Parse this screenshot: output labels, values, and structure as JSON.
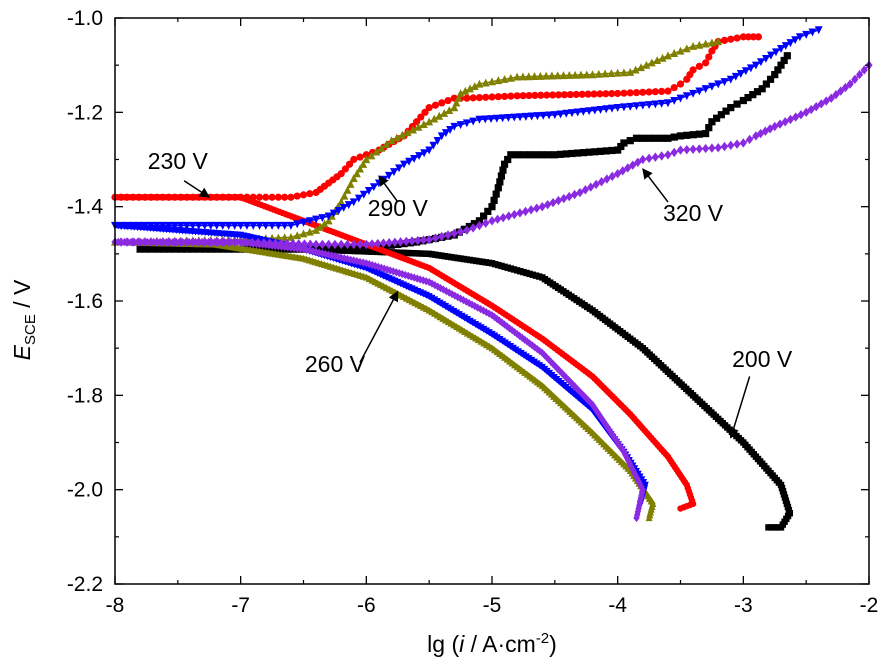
{
  "chart_data": {
    "type": "line",
    "xlabel_text": "lg (",
    "xlabel_italic": "i",
    "xlabel_unit": " / A·cm",
    "xlabel_sup": "-2",
    "xlabel_close": ")",
    "ylabel_italic": "E",
    "ylabel_sub": "SCE",
    "ylabel_unit": " / V",
    "xlim": [
      -8,
      -2
    ],
    "ylim": [
      -2.2,
      -1.0
    ],
    "xticks": [
      -8,
      -7,
      -6,
      -5,
      -4,
      -3,
      -2
    ],
    "yticks": [
      -2.2,
      -2.0,
      -1.8,
      -1.6,
      -1.4,
      -1.2,
      -1.0
    ],
    "legend": "none",
    "grid": false,
    "series": [
      {
        "name": "200 V",
        "color": "#000000",
        "marker": "square",
        "anodic": [
          [
            -7.8,
            -1.49
          ],
          [
            -7.0,
            -1.49
          ],
          [
            -6.3,
            -1.49
          ],
          [
            -5.9,
            -1.485
          ],
          [
            -5.6,
            -1.475
          ],
          [
            -5.3,
            -1.46
          ],
          [
            -5.1,
            -1.43
          ],
          [
            -5.0,
            -1.4
          ],
          [
            -4.95,
            -1.36
          ],
          [
            -4.9,
            -1.31
          ],
          [
            -4.85,
            -1.29
          ],
          [
            -4.5,
            -1.29
          ],
          [
            -4.0,
            -1.28
          ],
          [
            -3.95,
            -1.265
          ],
          [
            -3.85,
            -1.255
          ],
          [
            -3.6,
            -1.255
          ],
          [
            -3.5,
            -1.25
          ],
          [
            -3.3,
            -1.245
          ],
          [
            -3.25,
            -1.22
          ],
          [
            -3.1,
            -1.19
          ],
          [
            -3.0,
            -1.175
          ],
          [
            -2.85,
            -1.15
          ],
          [
            -2.75,
            -1.12
          ],
          [
            -2.65,
            -1.08
          ]
        ],
        "cathodic": [
          [
            -7.8,
            -1.49
          ],
          [
            -6.5,
            -1.49
          ],
          [
            -5.5,
            -1.5
          ],
          [
            -5.0,
            -1.52
          ],
          [
            -4.6,
            -1.55
          ],
          [
            -4.2,
            -1.62
          ],
          [
            -3.8,
            -1.7
          ],
          [
            -3.4,
            -1.8
          ],
          [
            -3.0,
            -1.9
          ],
          [
            -2.7,
            -1.99
          ],
          [
            -2.63,
            -2.05
          ],
          [
            -2.7,
            -2.08
          ],
          [
            -2.8,
            -2.08
          ]
        ]
      },
      {
        "name": "230 V",
        "color": "#ff0000",
        "marker": "circle",
        "anodic": [
          [
            -8.0,
            -1.38
          ],
          [
            -7.0,
            -1.38
          ],
          [
            -6.6,
            -1.38
          ],
          [
            -6.4,
            -1.37
          ],
          [
            -6.3,
            -1.35
          ],
          [
            -6.2,
            -1.33
          ],
          [
            -6.1,
            -1.3
          ],
          [
            -5.9,
            -1.28
          ],
          [
            -5.7,
            -1.25
          ],
          [
            -5.6,
            -1.22
          ],
          [
            -5.5,
            -1.19
          ],
          [
            -5.3,
            -1.17
          ],
          [
            -5.2,
            -1.17
          ],
          [
            -4.8,
            -1.165
          ],
          [
            -4.0,
            -1.16
          ],
          [
            -3.6,
            -1.155
          ],
          [
            -3.5,
            -1.14
          ],
          [
            -3.45,
            -1.13
          ],
          [
            -3.4,
            -1.11
          ],
          [
            -3.3,
            -1.095
          ],
          [
            -3.25,
            -1.07
          ],
          [
            -3.2,
            -1.05
          ],
          [
            -3.0,
            -1.04
          ],
          [
            -2.88,
            -1.04
          ]
        ],
        "cathodic": [
          [
            -8.0,
            -1.38
          ],
          [
            -7.0,
            -1.38
          ],
          [
            -6.5,
            -1.43
          ],
          [
            -6.0,
            -1.48
          ],
          [
            -5.5,
            -1.53
          ],
          [
            -5.0,
            -1.61
          ],
          [
            -4.6,
            -1.68
          ],
          [
            -4.2,
            -1.76
          ],
          [
            -3.9,
            -1.84
          ],
          [
            -3.6,
            -1.93
          ],
          [
            -3.45,
            -1.99
          ],
          [
            -3.4,
            -2.03
          ],
          [
            -3.5,
            -2.04
          ]
        ]
      },
      {
        "name": "260 V",
        "color": "#808000",
        "marker": "triangle-up",
        "anodic": [
          [
            -8.0,
            -1.475
          ],
          [
            -7.0,
            -1.47
          ],
          [
            -6.6,
            -1.465
          ],
          [
            -6.4,
            -1.45
          ],
          [
            -6.3,
            -1.43
          ],
          [
            -6.2,
            -1.39
          ],
          [
            -6.1,
            -1.34
          ],
          [
            -6.0,
            -1.3
          ],
          [
            -5.8,
            -1.26
          ],
          [
            -5.5,
            -1.22
          ],
          [
            -5.3,
            -1.19
          ],
          [
            -5.25,
            -1.16
          ],
          [
            -5.1,
            -1.14
          ],
          [
            -4.8,
            -1.125
          ],
          [
            -4.2,
            -1.12
          ],
          [
            -3.9,
            -1.115
          ],
          [
            -3.6,
            -1.08
          ],
          [
            -3.4,
            -1.06
          ],
          [
            -3.2,
            -1.05
          ]
        ],
        "cathodic": [
          [
            -8.0,
            -1.475
          ],
          [
            -7.2,
            -1.48
          ],
          [
            -6.5,
            -1.51
          ],
          [
            -6.0,
            -1.55
          ],
          [
            -5.5,
            -1.62
          ],
          [
            -5.0,
            -1.7
          ],
          [
            -4.6,
            -1.78
          ],
          [
            -4.2,
            -1.88
          ],
          [
            -3.9,
            -1.96
          ],
          [
            -3.72,
            -2.03
          ],
          [
            -3.75,
            -2.06
          ]
        ]
      },
      {
        "name": "290 V",
        "color": "#0000ff",
        "marker": "triangle-down",
        "anodic": [
          [
            -8.0,
            -1.44
          ],
          [
            -7.0,
            -1.44
          ],
          [
            -6.6,
            -1.44
          ],
          [
            -6.3,
            -1.42
          ],
          [
            -6.1,
            -1.39
          ],
          [
            -5.9,
            -1.35
          ],
          [
            -5.7,
            -1.31
          ],
          [
            -5.5,
            -1.28
          ],
          [
            -5.4,
            -1.25
          ],
          [
            -5.3,
            -1.23
          ],
          [
            -5.1,
            -1.215
          ],
          [
            -4.5,
            -1.205
          ],
          [
            -4.0,
            -1.19
          ],
          [
            -3.6,
            -1.18
          ],
          [
            -3.4,
            -1.16
          ],
          [
            -3.3,
            -1.15
          ],
          [
            -3.1,
            -1.13
          ],
          [
            -2.9,
            -1.1
          ],
          [
            -2.7,
            -1.065
          ],
          [
            -2.55,
            -1.04
          ],
          [
            -2.4,
            -1.025
          ]
        ],
        "cathodic": [
          [
            -8.0,
            -1.44
          ],
          [
            -7.0,
            -1.46
          ],
          [
            -6.5,
            -1.49
          ],
          [
            -6.0,
            -1.53
          ],
          [
            -5.5,
            -1.59
          ],
          [
            -5.0,
            -1.67
          ],
          [
            -4.6,
            -1.74
          ],
          [
            -4.2,
            -1.83
          ],
          [
            -3.95,
            -1.92
          ],
          [
            -3.78,
            -1.99
          ],
          [
            -3.82,
            -2.03
          ]
        ]
      },
      {
        "name": "320 V",
        "color": "#8a2be2",
        "marker": "diamond",
        "anodic": [
          [
            -8.0,
            -1.475
          ],
          [
            -7.0,
            -1.475
          ],
          [
            -6.4,
            -1.48
          ],
          [
            -6.0,
            -1.48
          ],
          [
            -5.5,
            -1.47
          ],
          [
            -5.2,
            -1.45
          ],
          [
            -5.0,
            -1.43
          ],
          [
            -4.6,
            -1.4
          ],
          [
            -4.3,
            -1.37
          ],
          [
            -4.0,
            -1.33
          ],
          [
            -3.8,
            -1.3
          ],
          [
            -3.6,
            -1.29
          ],
          [
            -3.5,
            -1.28
          ],
          [
            -3.2,
            -1.275
          ],
          [
            -3.0,
            -1.265
          ],
          [
            -2.9,
            -1.25
          ],
          [
            -2.75,
            -1.23
          ],
          [
            -2.5,
            -1.2
          ],
          [
            -2.3,
            -1.17
          ],
          [
            -2.15,
            -1.14
          ],
          [
            -2.0,
            -1.1
          ]
        ],
        "cathodic": [
          [
            -8.0,
            -1.475
          ],
          [
            -7.0,
            -1.475
          ],
          [
            -6.5,
            -1.49
          ],
          [
            -6.0,
            -1.52
          ],
          [
            -5.5,
            -1.56
          ],
          [
            -5.0,
            -1.63
          ],
          [
            -4.6,
            -1.71
          ],
          [
            -4.2,
            -1.82
          ],
          [
            -3.95,
            -1.92
          ],
          [
            -3.8,
            -2.0
          ],
          [
            -3.85,
            -2.06
          ]
        ]
      }
    ],
    "annotations": [
      {
        "label": "230 V",
        "text_at": [
          -7.5,
          -1.32
        ],
        "arrow_from": [
          -7.45,
          -1.345
        ],
        "arrow_to": [
          -7.25,
          -1.38
        ]
      },
      {
        "label": "290 V",
        "text_at": [
          -5.75,
          -1.42
        ],
        "arrow_from": [
          -5.75,
          -1.39
        ],
        "arrow_to": [
          -5.9,
          -1.335
        ]
      },
      {
        "label": "320 V",
        "text_at": [
          -3.4,
          -1.43
        ],
        "arrow_from": [
          -3.6,
          -1.39
        ],
        "arrow_to": [
          -3.8,
          -1.32
        ]
      },
      {
        "label": "260 V",
        "text_at": [
          -6.25,
          -1.75
        ],
        "arrow_from": [
          -6.05,
          -1.73
        ],
        "arrow_to": [
          -5.75,
          -1.58
        ]
      },
      {
        "label": "200 V",
        "text_at": [
          -2.85,
          -1.74
        ],
        "arrow_from": [
          -2.95,
          -1.76
        ],
        "arrow_to": [
          -3.1,
          -1.89
        ]
      }
    ]
  }
}
